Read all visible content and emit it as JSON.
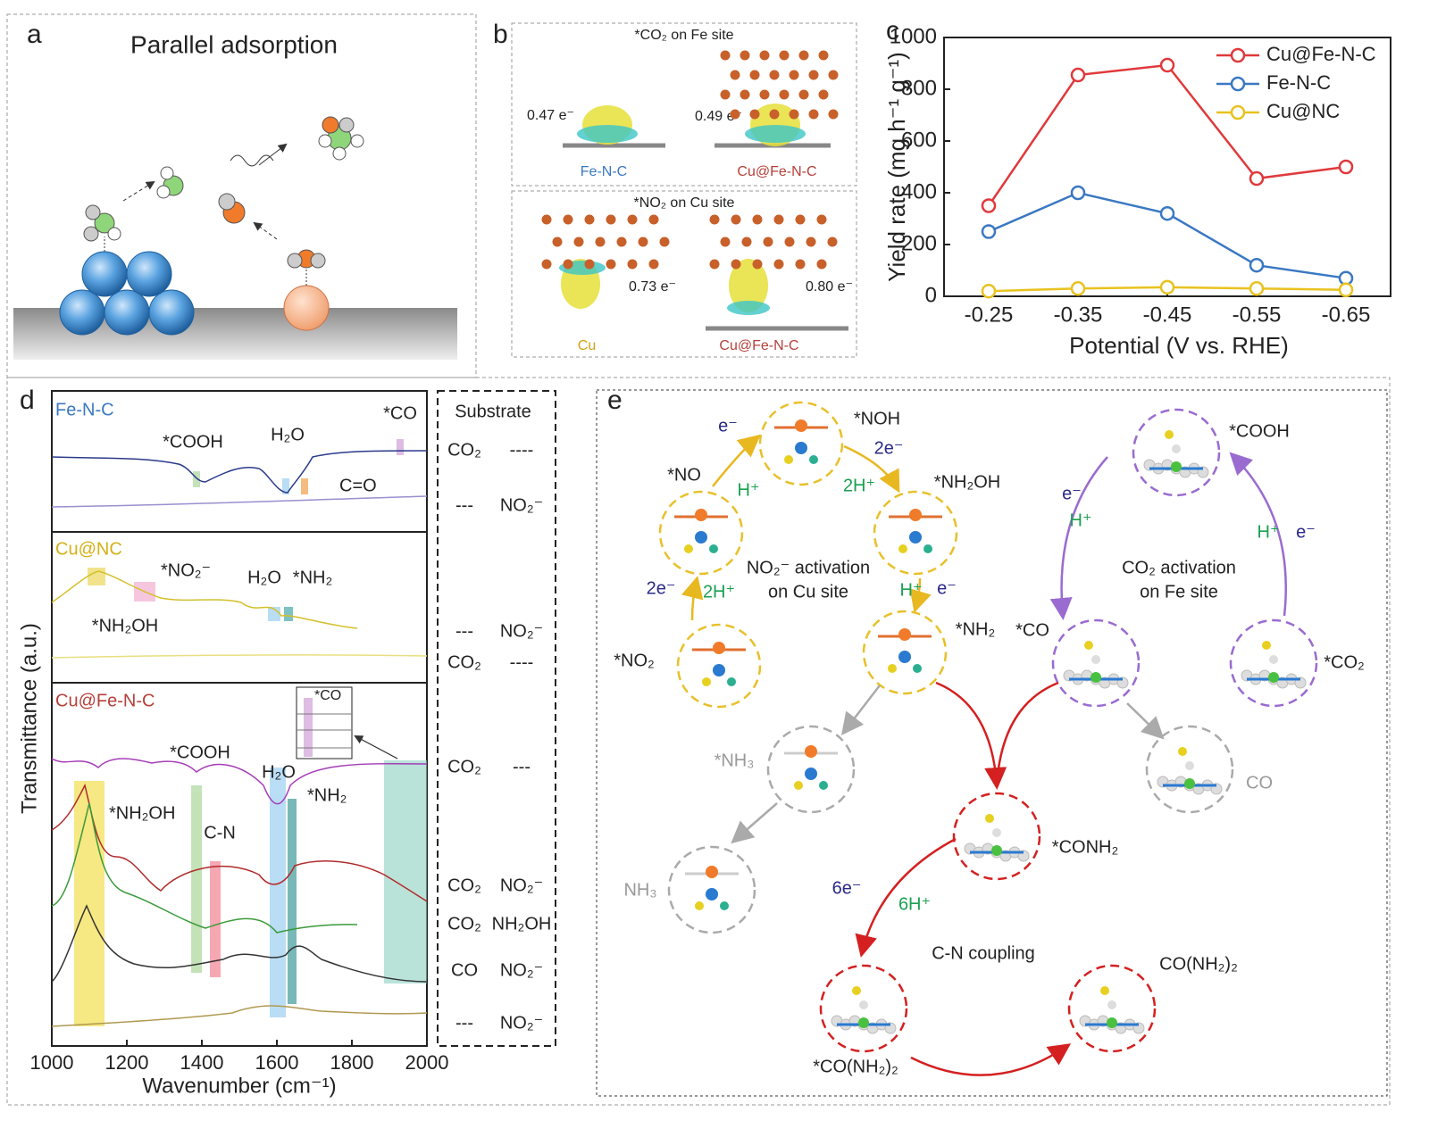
{
  "panel_a": {
    "label": "a",
    "title": "Parallel adsorption"
  },
  "panel_b": {
    "label": "b",
    "top_title": "*CO₂ on Fe site",
    "top_labels": [
      "0.47 e⁻",
      "0.49 e⁻",
      "Fe-N-C",
      "Cu@Fe-N-C"
    ],
    "bottom_title": "*NO₂ on Cu site",
    "bottom_labels": [
      "0.73 e⁻",
      "0.80 e⁻",
      "Cu",
      "Cu@Fe-N-C"
    ]
  },
  "chart_data": {
    "label": "c",
    "type": "line",
    "categories": [
      "-0.25",
      "-0.35",
      "-0.45",
      "-0.55",
      "-0.65"
    ],
    "series": [
      {
        "name": "Cu@Fe-N-C",
        "color": "#e0393b",
        "values": [
          350,
          855,
          893,
          455,
          500
        ]
      },
      {
        "name": "Fe-N-C",
        "color": "#3a78c2",
        "values": [
          250,
          400,
          320,
          120,
          70
        ]
      },
      {
        "name": "Cu@NC",
        "color": "#e8c21f",
        "values": [
          20,
          30,
          35,
          30,
          25
        ]
      }
    ],
    "ylim": [
      0,
      1000
    ],
    "yticks": [
      0,
      200,
      400,
      600,
      800,
      1000
    ],
    "x_label": "Potential (V vs. RHE)",
    "y_label": "Yield rate (mg h⁻¹ g⁻¹)",
    "legend": "upper right"
  },
  "panel_d": {
    "label": "d",
    "xlim": [
      1000,
      2000
    ],
    "xticks": [
      1000,
      1200,
      1400,
      1600,
      1800,
      2000
    ],
    "x_label": "Wavenumber (cm⁻¹)",
    "y_label": "Transmittance (a.u.)",
    "fe_title": "Fe-N-C",
    "fe_labels": [
      "*COOH",
      "H₂O",
      "*CO",
      "C=O"
    ],
    "cu_title": "Cu@NC",
    "cu_labels": [
      "*NO₂⁻",
      "H₂O",
      "*NH₂",
      "*NH₂OH"
    ],
    "cufe_title": "Cu@Fe-N-C",
    "cufe_labels": [
      "*CO",
      "*COOH",
      "*NH₂OH",
      "C-N",
      "H₂O",
      "*NH₂"
    ],
    "substrate": {
      "header": "Substrate",
      "rows": [
        [
          "CO₂",
          "----"
        ],
        [
          "---",
          "NO₂⁻"
        ],
        [
          "---",
          "NO₂⁻"
        ],
        [
          "CO₂",
          "----"
        ],
        [
          "CO₂",
          "---"
        ],
        [
          "CO₂",
          "NO₂⁻"
        ],
        [
          "CO₂",
          "NH₂OH"
        ],
        [
          "CO",
          "NO₂⁻"
        ],
        [
          "---",
          "NO₂⁻"
        ]
      ]
    }
  },
  "panel_e": {
    "label": "e",
    "labels": [
      "*NOH",
      "e⁻",
      "2e⁻",
      "*NO",
      "H⁺",
      "2H⁺",
      "*NH₂OH",
      "NO₂⁻ activation",
      "on Cu site",
      "2e⁻",
      "2H⁺",
      "H⁺",
      "e⁻",
      "*NO₂",
      "*NH₂",
      "*COOH",
      "e⁻",
      "H⁺",
      "H⁺",
      "e⁻",
      "CO₂ activation",
      "on Fe site",
      "*CO",
      "*CO₂",
      "*NH₃",
      "CO",
      "*CONH₂",
      "NH₃",
      "6e⁻",
      "6H⁺",
      "C-N coupling",
      "CO(NH₂)₂",
      "*CO(NH₂)₂"
    ]
  }
}
